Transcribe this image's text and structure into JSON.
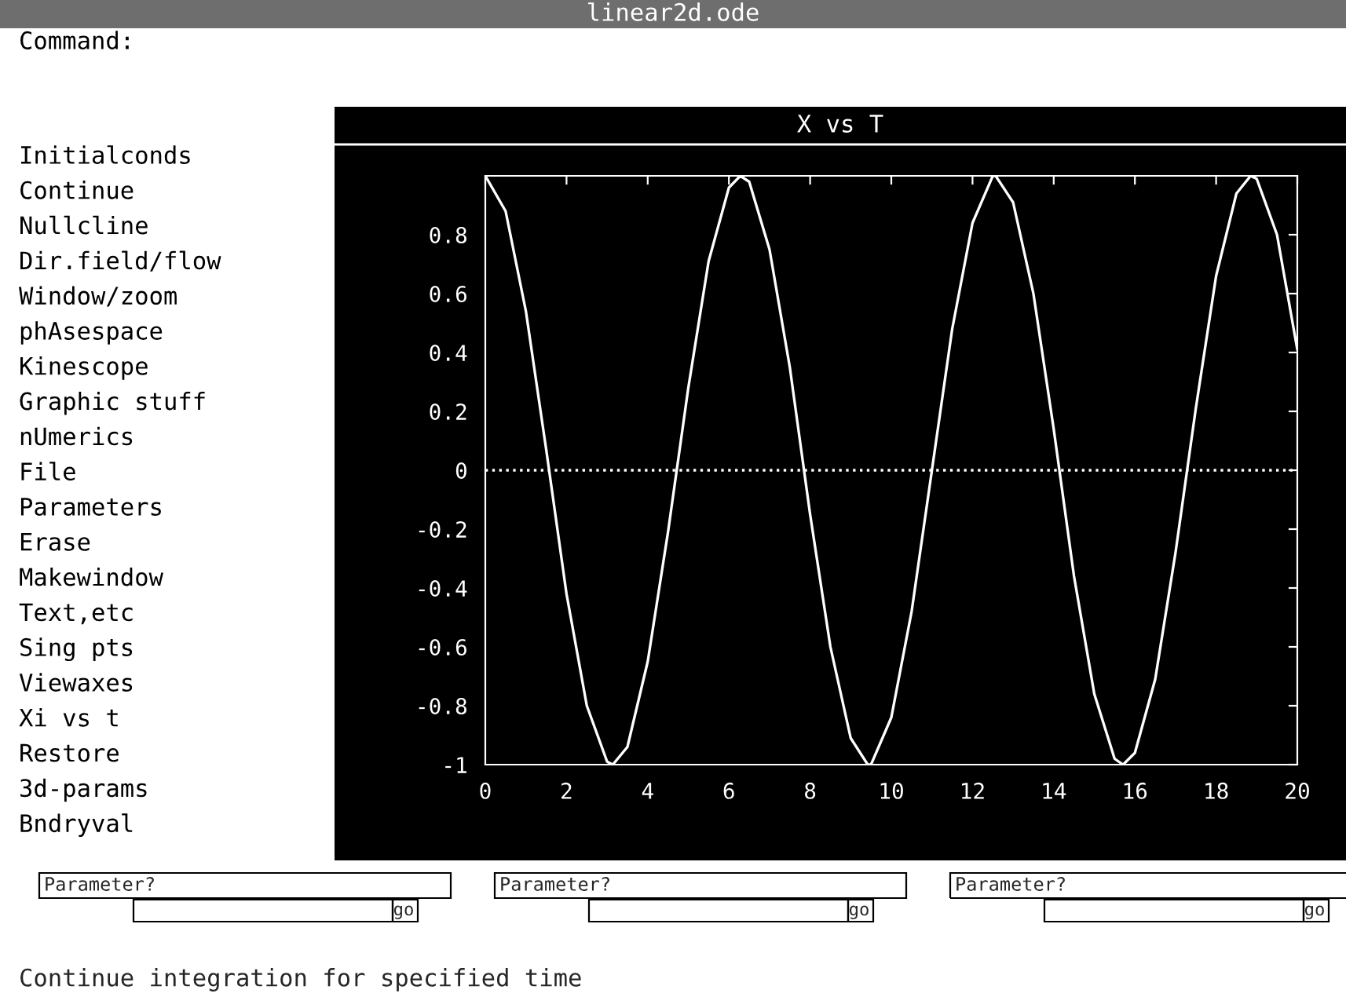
{
  "chart_data": {
    "type": "line",
    "title": "X vs T",
    "annotations": [
      "linear2d.ode",
      "Command:",
      "Initialconds",
      "Continue",
      "Nullcline",
      "Dir.field/flow",
      "Window/zoom",
      "phAsespace",
      "Kinescope",
      "Graphic stuff",
      "nUmerics",
      "File",
      "Parameters",
      "Erase",
      "Makewindow",
      "Text,etc",
      "Sing pts",
      "Viewaxes",
      "Xi vs t",
      "Restore",
      "3d-params",
      "Bndryval",
      "Parameter?",
      "go",
      "Parameter?",
      "go",
      "Parameter?",
      "go",
      "Continue integration for specified time"
    ],
    "series": [
      {
        "color": "#ffffff",
        "x": [
          0,
          0.5,
          1,
          1.5,
          2,
          2.5,
          3,
          3.14,
          3.5,
          4,
          4.5,
          5,
          5.5,
          6,
          6.28,
          6.5,
          7,
          7.5,
          8,
          8.5,
          9,
          9.42,
          9.5,
          10,
          10.5,
          11,
          11.5,
          12,
          12.5,
          12.57,
          13,
          13.5,
          14,
          14.5,
          15,
          15.5,
          15.71,
          16,
          16.5,
          17,
          17.5,
          18,
          18.5,
          18.85,
          19,
          19.5,
          20
        ],
        "values": [
          1,
          0.88,
          0.54,
          0.07,
          -0.42,
          -0.8,
          -0.99,
          -1,
          -0.94,
          -0.65,
          -0.21,
          0.28,
          0.71,
          0.96,
          1,
          0.98,
          0.75,
          0.35,
          -0.15,
          -0.6,
          -0.91,
          -1,
          -1,
          -0.84,
          -0.48,
          0,
          0.48,
          0.84,
          1,
          1,
          0.91,
          0.6,
          0.14,
          -0.36,
          -0.76,
          -0.98,
          -1,
          -0.96,
          -0.71,
          -0.28,
          0.21,
          0.66,
          0.94,
          1,
          0.99,
          0.8,
          0.41
        ]
      }
    ],
    "xlim": [
      0,
      20
    ],
    "ylim": [
      -1,
      1
    ],
    "xticks": [
      0,
      2,
      4,
      6,
      8,
      10,
      12,
      14,
      16,
      18,
      20
    ],
    "yticks": [
      -1,
      -0.8,
      -0.6,
      -0.4,
      -0.2,
      0,
      0.2,
      0.4,
      0.6,
      0.8
    ],
    "ref_lines": [
      {
        "axis": "y",
        "value": 0,
        "color": "#ffffff",
        "line_style": "dotted"
      }
    ],
    "grid": false,
    "legend": false,
    "marker": "none",
    "line_style": "solid"
  }
}
